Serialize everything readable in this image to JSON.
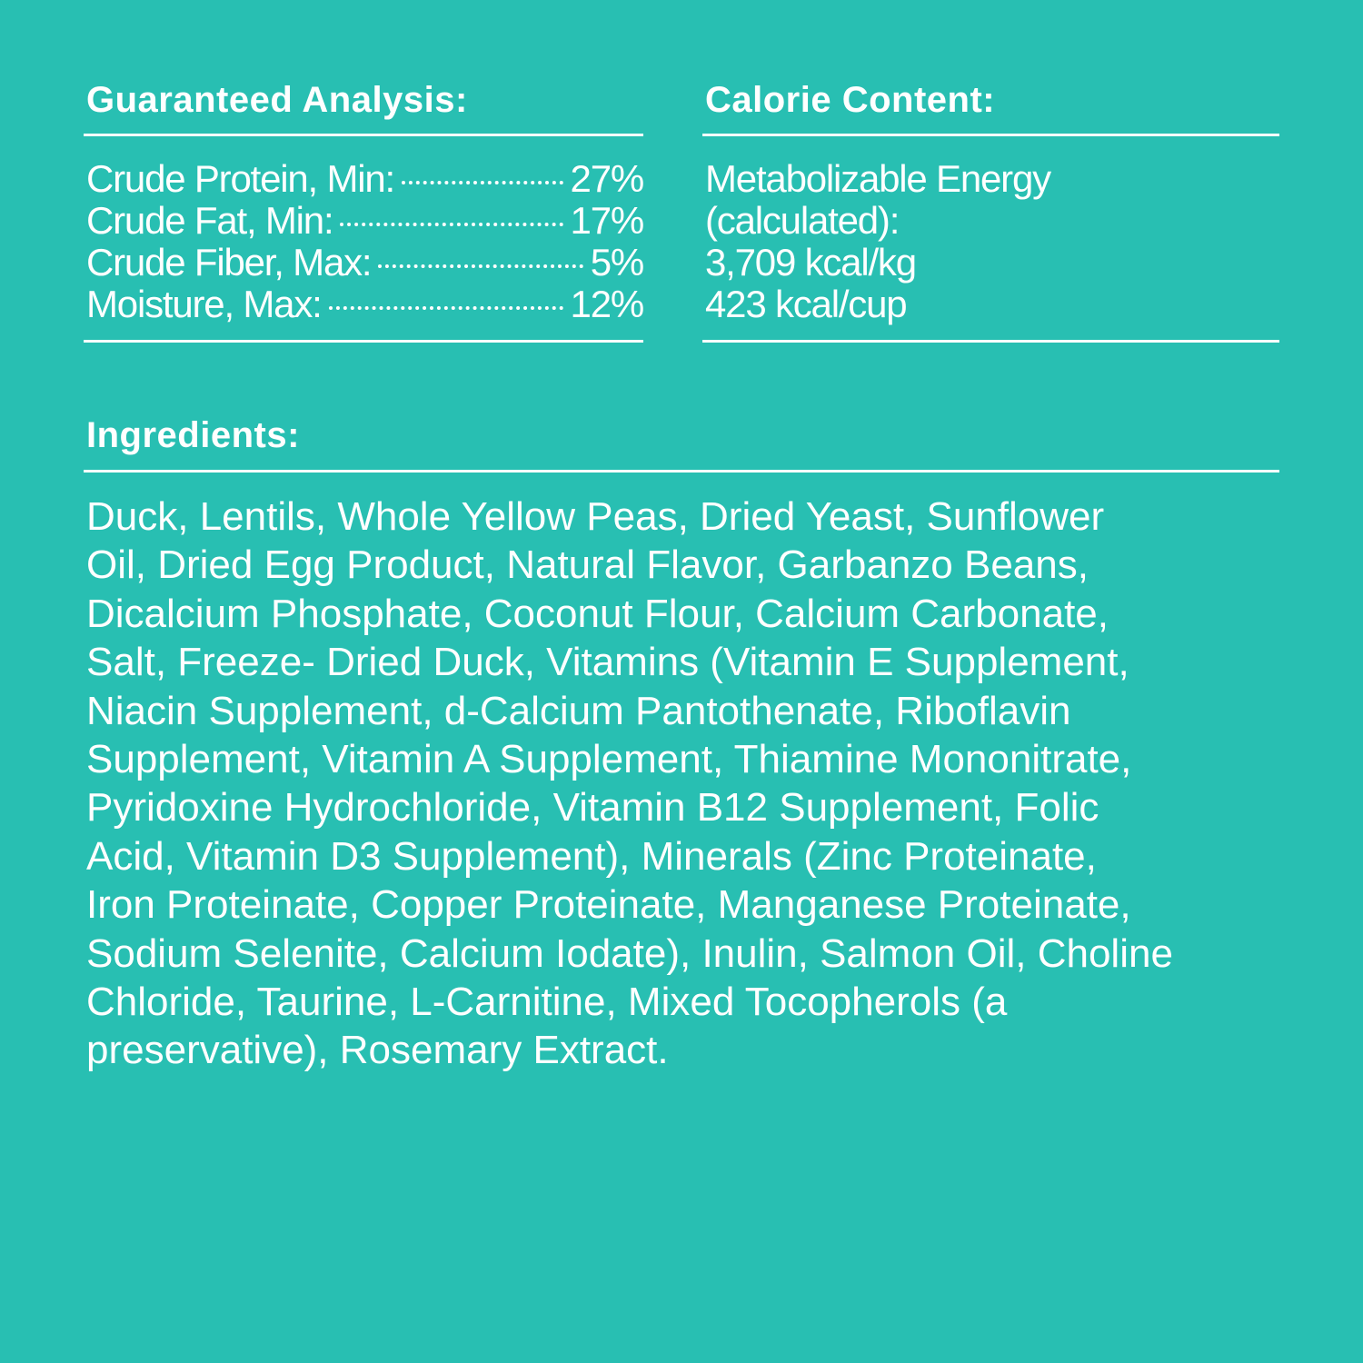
{
  "background_color": "#28bfb2",
  "guaranteed_analysis": {
    "title": "Guaranteed Analysis:",
    "rows": [
      {
        "label": "Crude Protein, Min:",
        "value": "27%"
      },
      {
        "label": "Crude Fat, Min:",
        "value": "17%"
      },
      {
        "label": "Crude Fiber, Max:",
        "value": "5%"
      },
      {
        "label": "Moisture, Max:",
        "value": "12%"
      }
    ]
  },
  "calorie_content": {
    "title": "Calorie Content:",
    "lines": [
      "Metabolizable Energy",
      "(calculated):",
      "3,709 kcal/kg",
      "423 kcal/cup"
    ]
  },
  "ingredients": {
    "title": "Ingredients:",
    "lines": [
      "Duck, Lentils, Whole Yellow Peas, Dried Yeast, Sunflower",
      "Oil, Dried Egg Product, Natural Flavor, Garbanzo Beans,",
      "Dicalcium Phosphate, Coconut Flour, Calcium Carbonate,",
      "Salt, Freeze- Dried Duck, Vitamins (Vitamin E Supplement,",
      "Niacin Supplement, d-Calcium Pantothenate, Riboflavin",
      "Supplement, Vitamin A Supplement, Thiamine Mononitrate,",
      "Pyridoxine Hydrochloride, Vitamin B12 Supplement, Folic",
      "Acid, Vitamin D3 Supplement), Minerals (Zinc Proteinate,",
      "Iron Proteinate, Copper Proteinate, Manganese Proteinate,",
      "Sodium Selenite, Calcium Iodate), Inulin, Salmon Oil, Choline",
      "Chloride, Taurine, L-Carnitine, Mixed Tocopherols (a",
      "preservative), Rosemary Extract."
    ]
  }
}
